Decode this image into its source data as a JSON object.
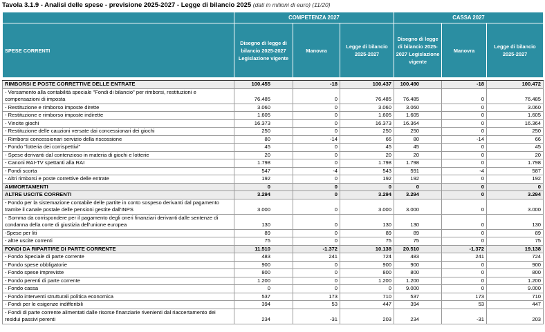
{
  "header": {
    "title": "Tavola 3.1.9 - Analisi delle spese - previsione 2025-2027 - Legge di bilancio 2025",
    "subtitle": "(dati in milioni di euro) (11/20)"
  },
  "table": {
    "groups": [
      "COMPETENZA 2027",
      "CASSA 2027"
    ],
    "columns": [
      "SPESE CORRENTI",
      "Disegno di legge di bilancio 2025-2027 Legislazione vigente",
      "Manovra",
      "Legge di bilancio 2025-2027",
      "Disegno di legge di bilancio 2025-2027 Legislazione vigente",
      "Manovra",
      "Legge di bilancio 2025-2027"
    ],
    "rows": [
      [
        "RIMBORSI E POSTE CORRETTIVE DELLE ENTRATE",
        "100.455",
        "-18",
        "100.437",
        "100.490",
        "-18",
        "100.472"
      ],
      [
        "- Versamento alla contabilità speciale \"Fondi di bilancio\" per rimborsi, restituzioni e compensazioni di imposta",
        "76.485",
        "0",
        "76.485",
        "76.485",
        "0",
        "76.485"
      ],
      [
        "- Restituzione e rimborso imposte dirette",
        "3.060",
        "0",
        "3.060",
        "3.060",
        "0",
        "3.060"
      ],
      [
        "- Restituzione e rimborso imposte indirette",
        "1.605",
        "0",
        "1.605",
        "1.605",
        "0",
        "1.605"
      ],
      [
        "- Vincite giochi",
        "16.373",
        "0",
        "16.373",
        "16.364",
        "0",
        "16.364"
      ],
      [
        "- Restituzione delle cauzioni versate dai concessionari dei giochi",
        "250",
        "0",
        "250",
        "250",
        "0",
        "250"
      ],
      [
        "- Rimborsi concessionari servizio della riscossione",
        "80",
        "-14",
        "66",
        "80",
        "-14",
        "66"
      ],
      [
        "- Fondo \"lotteria dei corrispettivi\"",
        "45",
        "0",
        "45",
        "45",
        "0",
        "45"
      ],
      [
        "- Spese derivanti dal contenzioso in materia di giochi e lotterie",
        "20",
        "0",
        "20",
        "20",
        "0",
        "20"
      ],
      [
        "- Canoni RAI-TV spettanti alla RAI",
        "1.798",
        "0",
        "1.798",
        "1.798",
        "0",
        "1.798"
      ],
      [
        "- Fondi scorta",
        "547",
        "-4",
        "543",
        "591",
        "-4",
        "587"
      ],
      [
        "- Altri rimborsi e poste correttive delle entrate",
        "192",
        "0",
        "192",
        "192",
        "0",
        "192"
      ],
      [
        "AMMORTAMENTI",
        "0",
        "0",
        "0",
        "0",
        "0",
        "0"
      ],
      [
        "ALTRE USCITE CORRENTI",
        "3.294",
        "0",
        "3.294",
        "3.294",
        "0",
        "3.294"
      ],
      [
        "- Fondo per la sistemazione contabile delle partite in conto sospeso derivanti dal pagamento tramite il canale postale delle pensioni gestite dall'INPS",
        "3.000",
        "0",
        "3.000",
        "3.000",
        "0",
        "3.000"
      ],
      [
        "- Somma da corrispondere per il pagamento degli oneri finanziari derivanti dalle sentenze di condanna della corte di giustizia dell'unione europea",
        "130",
        "0",
        "130",
        "130",
        "0",
        "130"
      ],
      [
        "-Spese per liti",
        "89",
        "0",
        "89",
        "89",
        "0",
        "89"
      ],
      [
        "- altre uscite correnti",
        "75",
        "0",
        "75",
        "75",
        "0",
        "75"
      ],
      [
        "FONDI DA RIPARTIRE DI PARTE CORRENTE",
        "11.510",
        "-1.372",
        "10.138",
        "20.510",
        "-1.372",
        "19.138"
      ],
      [
        "- Fondo Speciale di parte corrente",
        "483",
        "241",
        "724",
        "483",
        "241",
        "724"
      ],
      [
        "- Fondo spese obbligatorie",
        "900",
        "0",
        "900",
        "900",
        "0",
        "900"
      ],
      [
        "- Fondo spese impreviste",
        "800",
        "0",
        "800",
        "800",
        "0",
        "800"
      ],
      [
        "- Fondo perenti di parte corrente",
        "1.200",
        "0",
        "1.200",
        "1.200",
        "0",
        "1.200"
      ],
      [
        "- Fondo cassa",
        "0",
        "0",
        "0",
        "9.000",
        "0",
        "9.000"
      ],
      [
        "- Fondo interventi strutturali politica economica",
        "537",
        "173",
        "710",
        "537",
        "173",
        "710"
      ],
      [
        "- Fondi per le esigenze indifferibili",
        "394",
        "53",
        "447",
        "394",
        "53",
        "447"
      ],
      [
        "- Fondi di parte corrente alimentati dalle risorse finanziarie rivenienti dal riaccertamento dei residui passivi perenti",
        "234",
        "-31",
        "203",
        "234",
        "-31",
        "203"
      ]
    ]
  }
}
